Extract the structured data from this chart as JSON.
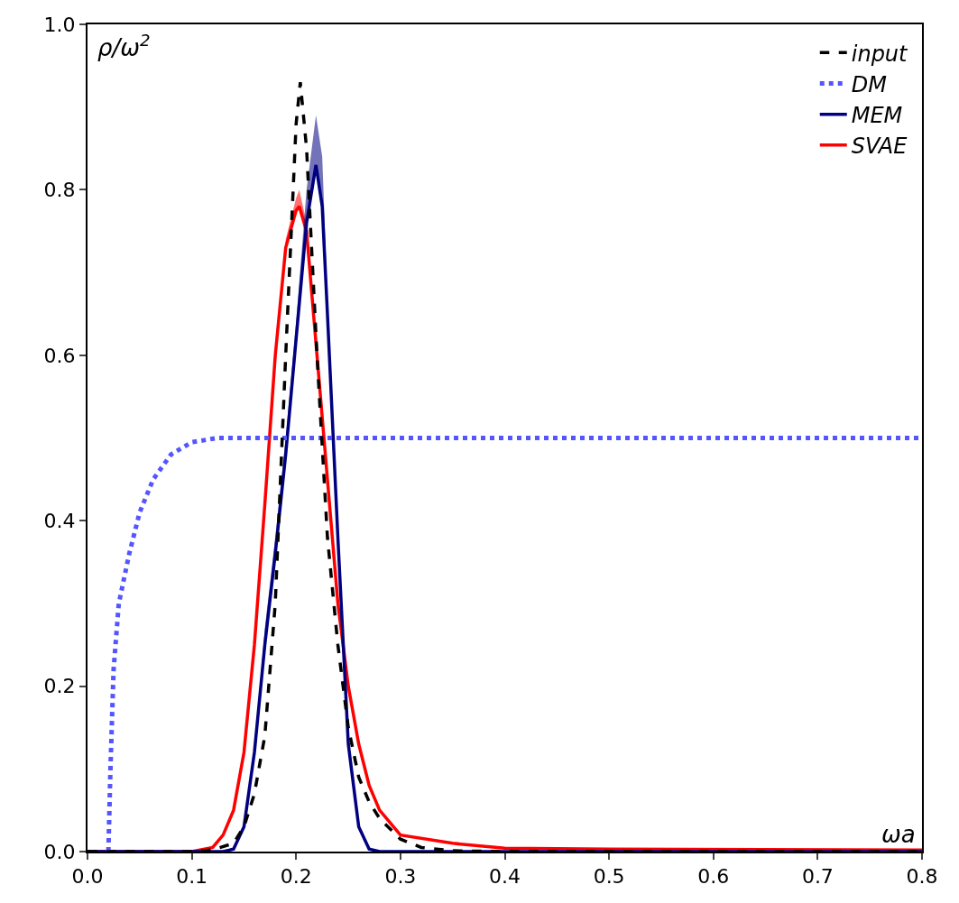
{
  "chart_data": {
    "type": "line",
    "xlabel": "ωa",
    "ylabel": "ρ/ω$^{2}$",
    "xlim": [
      0,
      0.8
    ],
    "xticks": [
      {
        "value": 0,
        "label": "0.0"
      },
      0.1,
      0.2,
      0.3,
      0.4,
      0.5,
      0.6,
      0.7,
      0.8
    ],
    "ylim": [
      0,
      1
    ],
    "yticks": [
      {
        "value": 0,
        "label": "0.0"
      },
      0.2,
      0.4,
      0.6,
      0.8,
      {
        "value": 1,
        "label": "1.0"
      }
    ],
    "grid": false,
    "legend": "top right",
    "marker": "none",
    "series": [
      {
        "name": "input",
        "color": "#000000",
        "line_style": "dashed",
        "x": [
          0,
          0.1,
          0.12,
          0.14,
          0.15,
          0.16,
          0.17,
          0.18,
          0.19,
          0.2,
          0.204,
          0.21,
          0.22,
          0.23,
          0.24,
          0.25,
          0.26,
          0.27,
          0.28,
          0.3,
          0.32,
          0.35,
          0.4,
          0.5,
          0.8
        ],
        "values": [
          0,
          0,
          0.002,
          0.01,
          0.03,
          0.07,
          0.14,
          0.3,
          0.6,
          0.88,
          0.93,
          0.85,
          0.6,
          0.38,
          0.25,
          0.15,
          0.09,
          0.06,
          0.04,
          0.015,
          0.005,
          0.001,
          0,
          0,
          0
        ]
      },
      {
        "name": "DM",
        "color": "#5555ff",
        "line_style": "dotted",
        "x": [
          0.02,
          0.021,
          0.022,
          0.025,
          0.03,
          0.04,
          0.05,
          0.063,
          0.08,
          0.1,
          0.125,
          0.15,
          0.8
        ],
        "values": [
          0,
          0.05,
          0.1,
          0.22,
          0.3,
          0.36,
          0.41,
          0.45,
          0.48,
          0.495,
          0.5,
          0.5,
          0.5
        ]
      },
      {
        "name": "MEM",
        "color": "#000080",
        "line_style": "solid",
        "x": [
          0,
          0.13,
          0.14,
          0.15,
          0.16,
          0.17,
          0.18,
          0.19,
          0.2,
          0.21,
          0.219,
          0.225,
          0.23,
          0.24,
          0.25,
          0.26,
          0.27,
          0.28,
          0.8
        ],
        "values": [
          0,
          0,
          0.003,
          0.03,
          0.12,
          0.25,
          0.36,
          0.48,
          0.62,
          0.76,
          0.83,
          0.78,
          0.65,
          0.38,
          0.13,
          0.03,
          0.003,
          0,
          0
        ],
        "lower": [
          0,
          0,
          0.003,
          0.03,
          0.12,
          0.25,
          0.36,
          0.48,
          0.62,
          0.76,
          0.83,
          0.78,
          0.65,
          0.38,
          0.13,
          0.03,
          0.003,
          0,
          0
        ],
        "upper": [
          0,
          0,
          0.003,
          0.03,
          0.12,
          0.27,
          0.38,
          0.5,
          0.64,
          0.8,
          0.89,
          0.84,
          0.67,
          0.39,
          0.14,
          0.03,
          0.003,
          0,
          0
        ]
      },
      {
        "name": "SVAE",
        "color": "#ff0000",
        "line_style": "solid",
        "x": [
          0,
          0.1,
          0.12,
          0.13,
          0.14,
          0.15,
          0.16,
          0.17,
          0.18,
          0.19,
          0.2,
          0.203,
          0.21,
          0.22,
          0.23,
          0.24,
          0.25,
          0.26,
          0.27,
          0.28,
          0.3,
          0.35,
          0.4,
          0.5,
          0.8
        ],
        "values": [
          0,
          0,
          0.005,
          0.02,
          0.05,
          0.12,
          0.25,
          0.42,
          0.6,
          0.73,
          0.775,
          0.78,
          0.75,
          0.6,
          0.45,
          0.3,
          0.2,
          0.13,
          0.08,
          0.05,
          0.02,
          0.01,
          0.004,
          0.003,
          0.002
        ],
        "lower": [
          0,
          0,
          0.005,
          0.02,
          0.05,
          0.12,
          0.25,
          0.42,
          0.6,
          0.73,
          0.775,
          0.78,
          0.75,
          0.6,
          0.45,
          0.3,
          0.2,
          0.13,
          0.08,
          0.05,
          0.02,
          0.01,
          0.004,
          0.003,
          0.002
        ],
        "upper": [
          0,
          0,
          0.005,
          0.02,
          0.05,
          0.12,
          0.25,
          0.42,
          0.6,
          0.74,
          0.79,
          0.8,
          0.76,
          0.6,
          0.45,
          0.3,
          0.2,
          0.13,
          0.08,
          0.05,
          0.02,
          0.01,
          0.004,
          0.003,
          0.002
        ]
      }
    ]
  }
}
